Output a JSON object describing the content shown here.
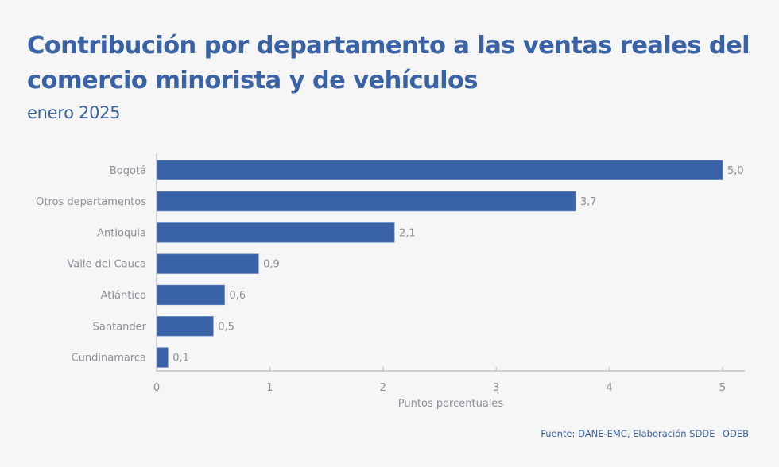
{
  "header": {
    "title": "Contribución por departamento a las ventas reales del comercio minorista y de vehículos",
    "subtitle": "enero 2025"
  },
  "source": "Fuente: DANE-EMC, Elaboración SDDE –ODEB",
  "colors": {
    "bar": "#3a62a7",
    "title": "#3a62a7",
    "text": "#8a9099",
    "axis": "#b5b9bf",
    "background": "#f6f6f6"
  },
  "chart_data": {
    "type": "bar",
    "orientation": "horizontal",
    "title": "Contribución por departamento a las ventas reales del comercio minorista y de vehículos",
    "subtitle": "enero 2025",
    "categories": [
      "Bogotá",
      "Otros departamentos",
      "Antioquia",
      "Valle del Cauca",
      "Atlántico",
      "Santander",
      "Cundinamarca"
    ],
    "values": [
      5.0,
      3.7,
      2.1,
      0.9,
      0.6,
      0.5,
      0.1
    ],
    "value_labels": [
      "5,0",
      "3,7",
      "2,1",
      "0,9",
      "0,6",
      "0,5",
      "0,1"
    ],
    "xlabel": "Puntos porcentuales",
    "ylabel": "",
    "xlim": [
      0,
      5.2
    ],
    "xticks": [
      0,
      1,
      2,
      3,
      4,
      5
    ],
    "xtick_labels": [
      "0",
      "1",
      "2",
      "3",
      "4",
      "5"
    ],
    "grid": false,
    "legend": "none"
  }
}
